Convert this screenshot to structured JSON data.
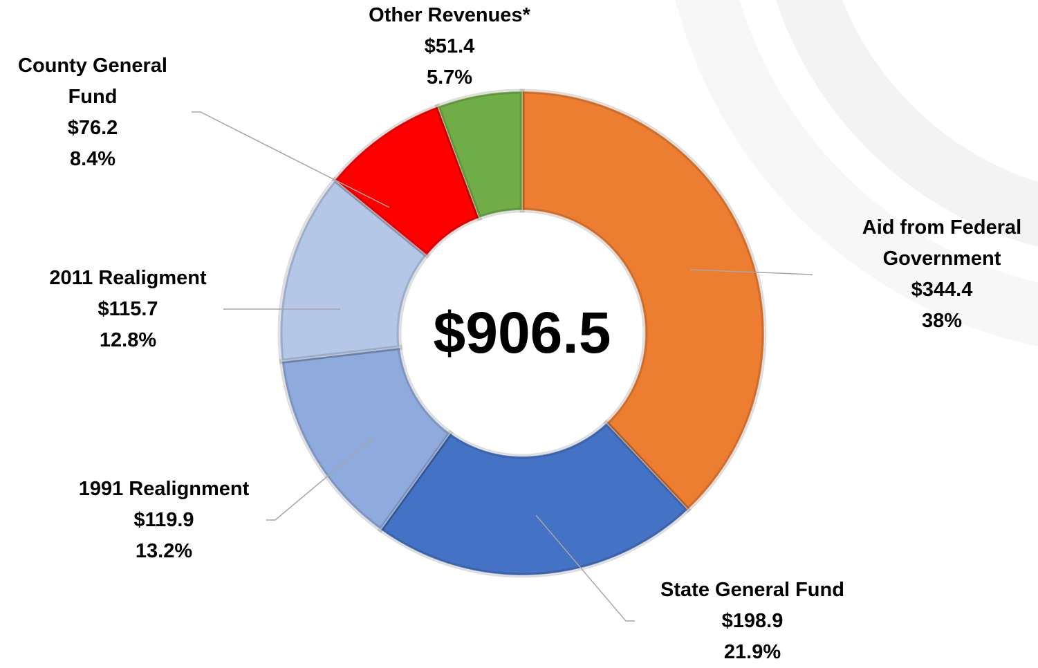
{
  "chart_data": {
    "type": "pie",
    "donut": true,
    "total_label": "$906.5",
    "categories": [
      "Aid from Federal Government",
      "State General Fund",
      "1991 Realignment",
      "2011 Realigment",
      "County General Fund",
      "Other Revenues*"
    ],
    "values": [
      344.4,
      198.9,
      119.9,
      115.7,
      76.2,
      51.4
    ],
    "value_labels": [
      "$344.4",
      "$198.9",
      "$119.9",
      "$115.7",
      "$76.2",
      "$51.4"
    ],
    "percents": [
      38,
      21.9,
      13.2,
      12.8,
      8.4,
      5.7
    ],
    "percent_labels": [
      "38%",
      "21.9%",
      "13.2%",
      "12.8%",
      "8.4%",
      "5.7%"
    ],
    "colors": [
      "#ed7d31",
      "#4472c4",
      "#8faadc",
      "#b4c7e7",
      "#ff0000",
      "#70ad47"
    ]
  }
}
